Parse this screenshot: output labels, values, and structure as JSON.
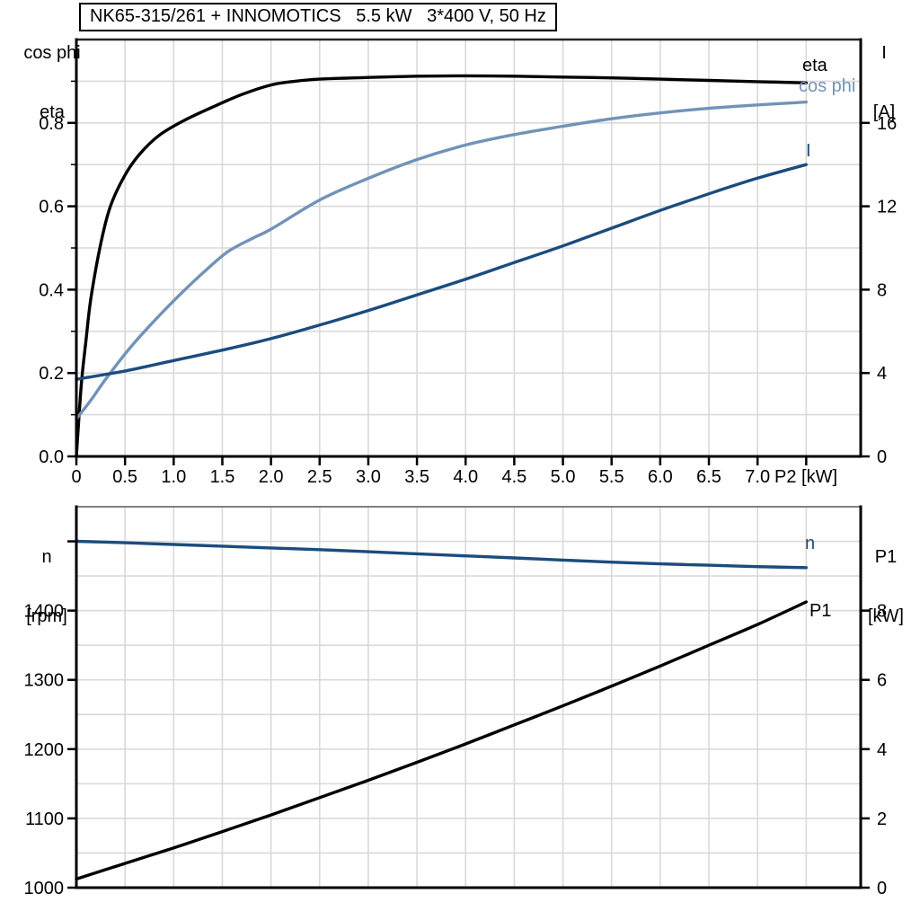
{
  "colors": {
    "black": "#000000",
    "dark_blue": "#1b4c7d",
    "steel_blue": "#7193b8",
    "grid": "#d9d9d9",
    "plot2_top_border": "#808080"
  },
  "chart_data": [
    {
      "type": "line",
      "title": "NK65-315/261 + INNOMOTICS   5.5 kW   3*400 V, 50 Hz",
      "x_axis": {
        "label": "P2 [kW]",
        "min": 0,
        "max": 8.06,
        "major_ticks": [
          0,
          0.5,
          1,
          1.5,
          2,
          2.5,
          3,
          3.5,
          4,
          4.5,
          5,
          5.5,
          6,
          6.5,
          7
        ],
        "tick_labels": [
          "0",
          "0.5",
          "1.0",
          "1.5",
          "2.0",
          "2.5",
          "3.0",
          "3.5",
          "4.0",
          "4.5",
          "5.0",
          "5.5",
          "6.0",
          "6.5",
          "7.0"
        ],
        "extra_ticks": [
          7.5
        ],
        "grid_values": [
          0.5,
          1,
          1.5,
          2,
          2.5,
          3,
          3.5,
          4,
          4.5,
          5,
          5.5,
          6,
          6.5,
          7,
          7.5
        ]
      },
      "y_left": {
        "label_lines": [
          "cos phi",
          "eta"
        ],
        "min": 0,
        "max": 1,
        "major_ticks": [
          0,
          0.2,
          0.4,
          0.6,
          0.8
        ],
        "tick_labels": [
          "0.0",
          "0.2",
          "0.4",
          "0.6",
          "0.8"
        ],
        "minor_ticks": [
          0.1,
          0.3,
          0.5,
          0.7,
          0.9
        ],
        "grid_values": [
          0.1,
          0.2,
          0.3,
          0.4,
          0.5,
          0.6,
          0.7,
          0.8,
          0.9
        ]
      },
      "y_right": {
        "label_lines": [
          "I",
          "[A]"
        ],
        "min": 0,
        "max": 20,
        "major_ticks": [
          0,
          4,
          8,
          12,
          16
        ],
        "tick_labels": [
          "0",
          "4",
          "8",
          "12",
          "16"
        ]
      },
      "series": [
        {
          "name": "eta",
          "axis": "left",
          "color": "#000000",
          "points": [
            [
              0,
              0
            ],
            [
              0.05,
              0.17
            ],
            [
              0.1,
              0.28
            ],
            [
              0.15,
              0.38
            ],
            [
              0.25,
              0.51
            ],
            [
              0.35,
              0.6
            ],
            [
              0.5,
              0.675
            ],
            [
              0.65,
              0.725
            ],
            [
              0.85,
              0.77
            ],
            [
              1.1,
              0.805
            ],
            [
              1.4,
              0.838
            ],
            [
              1.7,
              0.868
            ],
            [
              2,
              0.891
            ],
            [
              2.25,
              0.9
            ],
            [
              2.5,
              0.905
            ],
            [
              3,
              0.909
            ],
            [
              3.5,
              0.912
            ],
            [
              4,
              0.913
            ],
            [
              4.5,
              0.912
            ],
            [
              5,
              0.91
            ],
            [
              5.5,
              0.908
            ],
            [
              6,
              0.905
            ],
            [
              6.5,
              0.902
            ],
            [
              7,
              0.899
            ],
            [
              7.5,
              0.896
            ]
          ]
        },
        {
          "name": "cos phi",
          "axis": "left",
          "color": "#7193b8",
          "points": [
            [
              0,
              0.09
            ],
            [
              0.15,
              0.135
            ],
            [
              0.3,
              0.185
            ],
            [
              0.55,
              0.26
            ],
            [
              0.8,
              0.325
            ],
            [
              1.05,
              0.385
            ],
            [
              1.3,
              0.44
            ],
            [
              1.55,
              0.49
            ],
            [
              1.8,
              0.522
            ],
            [
              2,
              0.545
            ],
            [
              2.5,
              0.615
            ],
            [
              3,
              0.667
            ],
            [
              3.5,
              0.712
            ],
            [
              4,
              0.747
            ],
            [
              4.5,
              0.772
            ],
            [
              5,
              0.792
            ],
            [
              5.5,
              0.81
            ],
            [
              6,
              0.824
            ],
            [
              6.5,
              0.835
            ],
            [
              7,
              0.843
            ],
            [
              7.5,
              0.85
            ]
          ]
        },
        {
          "name": "I",
          "axis": "right",
          "color": "#1b4c7d",
          "points": [
            [
              0,
              3.7
            ],
            [
              0.5,
              4.1
            ],
            [
              1,
              4.6
            ],
            [
              1.5,
              5.1
            ],
            [
              2,
              5.65
            ],
            [
              2.5,
              6.3
            ],
            [
              3,
              7
            ],
            [
              3.5,
              7.75
            ],
            [
              4,
              8.5
            ],
            [
              4.5,
              9.3
            ],
            [
              5,
              10.1
            ],
            [
              5.5,
              10.95
            ],
            [
              6,
              11.8
            ],
            [
              6.5,
              12.6
            ],
            [
              7,
              13.35
            ],
            [
              7.5,
              14
            ]
          ]
        }
      ]
    },
    {
      "type": "line",
      "x_axis": {
        "label": "",
        "min": 0,
        "max": 8.06,
        "major_ticks": [],
        "tick_labels": [],
        "extra_ticks": [],
        "grid_values": [
          0.5,
          1,
          1.5,
          2,
          2.5,
          3,
          3.5,
          4,
          4.5,
          5,
          5.5,
          6,
          6.5,
          7,
          7.5
        ]
      },
      "y_left": {
        "label_lines": [
          "n",
          "[rpm]"
        ],
        "min": 1000,
        "max": 1550,
        "major_ticks": [
          1000,
          1100,
          1200,
          1300,
          1400
        ],
        "tick_labels": [
          "1000",
          "1100",
          "1200",
          "1300",
          "1400"
        ],
        "extra_ticks": [
          1500
        ],
        "grid_values": [
          1050,
          1100,
          1150,
          1200,
          1250,
          1300,
          1350,
          1400,
          1450,
          1500
        ]
      },
      "y_right": {
        "label_lines": [
          "P1",
          "[kW]"
        ],
        "min": 0,
        "max": 11,
        "major_ticks": [
          0,
          2,
          4,
          6,
          8
        ],
        "tick_labels": [
          "0",
          "2",
          "4",
          "6",
          "8"
        ]
      },
      "series": [
        {
          "name": "n",
          "axis": "left",
          "color": "#1b4c7d",
          "points": [
            [
              0,
              1500
            ],
            [
              0.5,
              1498
            ],
            [
              1,
              1495.5
            ],
            [
              1.5,
              1493
            ],
            [
              2,
              1490.5
            ],
            [
              2.5,
              1488
            ],
            [
              3,
              1485
            ],
            [
              3.5,
              1482
            ],
            [
              4,
              1479
            ],
            [
              4.5,
              1476
            ],
            [
              5,
              1473
            ],
            [
              5.5,
              1470
            ],
            [
              6,
              1467.5
            ],
            [
              6.5,
              1465.5
            ],
            [
              7,
              1463.5
            ],
            [
              7.5,
              1462
            ]
          ]
        },
        {
          "name": "P1",
          "axis": "right",
          "color": "#000000",
          "points": [
            [
              0,
              0.25
            ],
            [
              0.5,
              0.7
            ],
            [
              1,
              1.15
            ],
            [
              1.5,
              1.62
            ],
            [
              2,
              2.1
            ],
            [
              2.5,
              2.6
            ],
            [
              3,
              3.1
            ],
            [
              3.5,
              3.62
            ],
            [
              4,
              4.15
            ],
            [
              4.5,
              4.7
            ],
            [
              5,
              5.25
            ],
            [
              5.5,
              5.82
            ],
            [
              6,
              6.4
            ],
            [
              6.5,
              7
            ],
            [
              7,
              7.6
            ],
            [
              7.5,
              8.25
            ]
          ]
        }
      ]
    }
  ]
}
